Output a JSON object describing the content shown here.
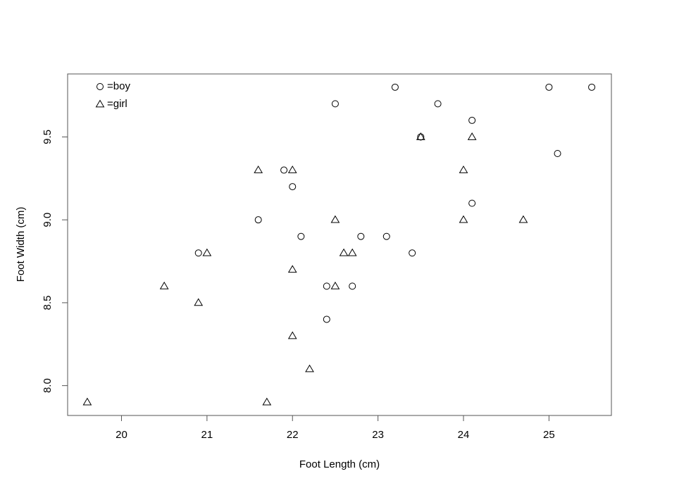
{
  "chart_data": {
    "type": "scatter",
    "x_label": "Foot Length (cm)",
    "y_label": "Foot Width (cm)",
    "xlim": [
      19.37,
      25.73
    ],
    "ylim": [
      7.82,
      9.88
    ],
    "xticks": [
      20,
      21,
      22,
      23,
      24,
      25
    ],
    "yticks": [
      {
        "value": 8,
        "label": "8.0"
      },
      8.5,
      {
        "value": 9,
        "label": "9.0"
      },
      9.5
    ],
    "legend": "top-left",
    "series": [
      {
        "name": "=boy",
        "color": "#000000",
        "marker": "circle",
        "x": [
          23.2,
          22.5,
          23.7,
          25.0,
          25.5,
          24.1,
          23.5,
          25.1,
          21.9,
          22.0,
          24.1,
          21.6,
          22.1,
          22.8,
          23.1,
          20.9,
          23.4,
          22.4,
          22.7,
          22.4
        ],
        "values": [
          9.8,
          9.7,
          9.7,
          9.8,
          9.8,
          9.6,
          9.5,
          9.4,
          9.3,
          9.2,
          9.1,
          9.0,
          8.9,
          8.9,
          8.9,
          8.8,
          8.8,
          8.6,
          8.6,
          8.4
        ]
      },
      {
        "name": "=girl",
        "color": "#000000",
        "marker": "triangle",
        "x": [
          19.6,
          20.5,
          20.9,
          21.0,
          21.6,
          21.7,
          22.0,
          22.0,
          22.0,
          22.2,
          22.5,
          22.5,
          22.6,
          22.7,
          23.5,
          24.0,
          24.0,
          24.1,
          24.7
        ],
        "values": [
          7.9,
          8.6,
          8.5,
          8.8,
          9.3,
          7.9,
          9.3,
          8.7,
          8.3,
          8.1,
          9.0,
          8.6,
          8.8,
          8.8,
          9.5,
          9.3,
          9.0,
          9.5,
          9.0
        ]
      }
    ]
  }
}
